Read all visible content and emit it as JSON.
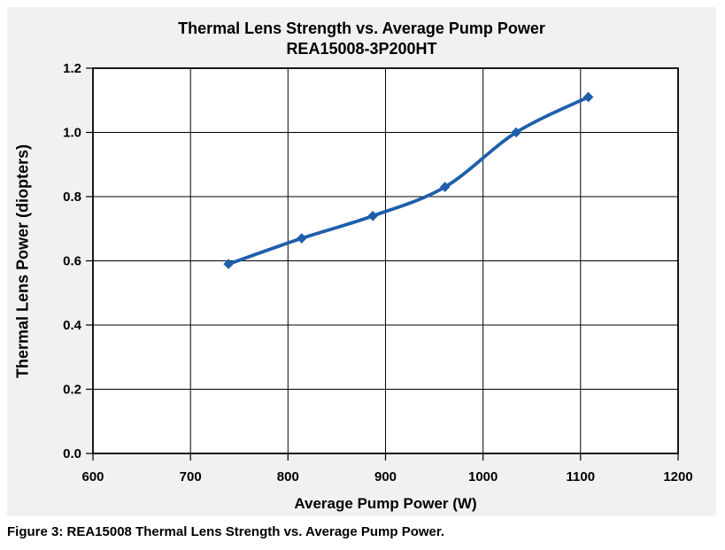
{
  "caption": "Figure 3: REA15008 Thermal Lens Strength vs. Average Pump Power.",
  "colors": {
    "chart_background": "#F1F1F1",
    "plot_background": "#FFFFFF",
    "gridline": "#000000",
    "axis": "#000000",
    "text": "#000000",
    "series_blue": "#1E5FAB"
  },
  "chart_data": {
    "type": "line",
    "title": "Thermal Lens Strength vs. Average Pump Power",
    "subtitle": "REA15008-3P200HT",
    "xlabel": "Average Pump Power (W)",
    "ylabel": "Thermal Lens Power (diopters)",
    "xlim": [
      600,
      1200
    ],
    "ylim": [
      0,
      1.2
    ],
    "x_ticks": [
      600,
      700,
      800,
      900,
      1000,
      1100,
      1200
    ],
    "x_tick_labels": [
      "600",
      "700",
      "800",
      "900",
      "1000",
      "1100",
      "1200"
    ],
    "y_ticks": [
      0,
      0.2,
      0.4,
      0.6,
      0.8,
      1.0,
      1.2
    ],
    "y_tick_labels": [
      "0.0",
      "0.2",
      "0.4",
      "0.6",
      "0.8",
      "1.0",
      "1.2"
    ],
    "grid": true,
    "legend": "none",
    "smoothed_line": true,
    "marker": "diamond",
    "series": [
      {
        "name": "Thermal Lens Power",
        "color": "#1E5FAB",
        "x": [
          739,
          814,
          887,
          961,
          1034,
          1108
        ],
        "y": [
          0.59,
          0.67,
          0.74,
          0.83,
          1.0,
          1.11
        ]
      }
    ]
  }
}
